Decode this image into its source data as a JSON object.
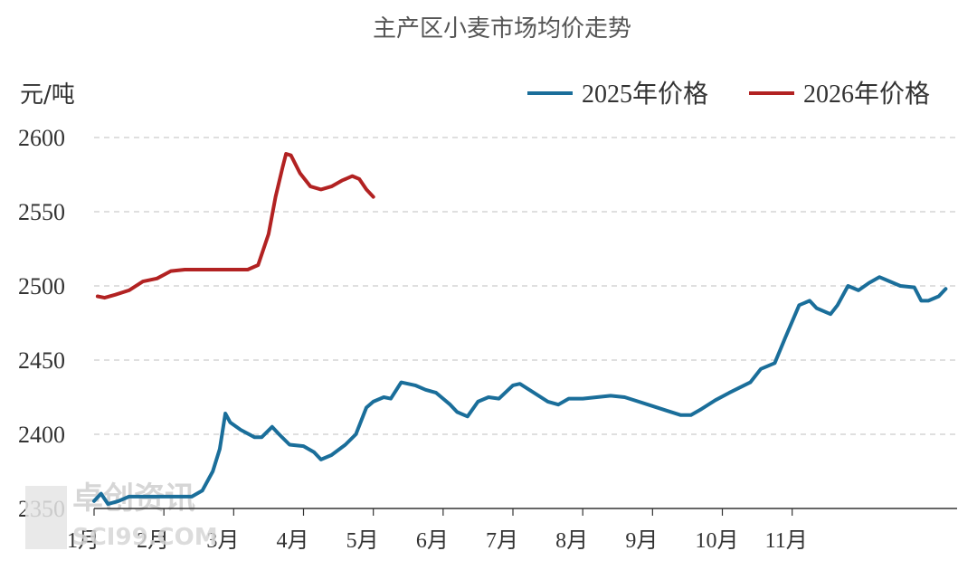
{
  "chart_data": {
    "type": "line",
    "title": "主产区小麦市场均价走势",
    "ylabel": "元/吨",
    "xlabel": "",
    "ylim": [
      2350,
      2600
    ],
    "yticks": [
      2350,
      2400,
      2450,
      2500,
      2550,
      2600
    ],
    "categories": [
      "1月",
      "2月",
      "3月",
      "4月",
      "5月",
      "6月",
      "7月",
      "8月",
      "9月",
      "10月",
      "11月"
    ],
    "x_range_months": [
      1,
      12.93
    ],
    "grid": true,
    "legend_position": "top-right",
    "series": [
      {
        "name": "2025年价格",
        "color": "#1a6e9a",
        "points": [
          [
            1.0,
            2355
          ],
          [
            1.1,
            2360
          ],
          [
            1.2,
            2353
          ],
          [
            1.35,
            2355
          ],
          [
            1.5,
            2358
          ],
          [
            1.8,
            2358
          ],
          [
            2.1,
            2358
          ],
          [
            2.4,
            2358
          ],
          [
            2.55,
            2362
          ],
          [
            2.7,
            2375
          ],
          [
            2.8,
            2390
          ],
          [
            2.88,
            2414
          ],
          [
            2.95,
            2408
          ],
          [
            3.1,
            2403
          ],
          [
            3.3,
            2398
          ],
          [
            3.4,
            2398
          ],
          [
            3.55,
            2405
          ],
          [
            3.65,
            2400
          ],
          [
            3.8,
            2393
          ],
          [
            4.0,
            2392
          ],
          [
            4.15,
            2388
          ],
          [
            4.25,
            2383
          ],
          [
            4.4,
            2386
          ],
          [
            4.6,
            2393
          ],
          [
            4.75,
            2400
          ],
          [
            4.9,
            2418
          ],
          [
            5.0,
            2422
          ],
          [
            5.15,
            2425
          ],
          [
            5.25,
            2424
          ],
          [
            5.4,
            2435
          ],
          [
            5.6,
            2433
          ],
          [
            5.75,
            2430
          ],
          [
            5.9,
            2428
          ],
          [
            6.1,
            2420
          ],
          [
            6.2,
            2415
          ],
          [
            6.35,
            2412
          ],
          [
            6.5,
            2422
          ],
          [
            6.65,
            2425
          ],
          [
            6.8,
            2424
          ],
          [
            7.0,
            2433
          ],
          [
            7.1,
            2434
          ],
          [
            7.3,
            2428
          ],
          [
            7.5,
            2422
          ],
          [
            7.65,
            2420
          ],
          [
            7.8,
            2424
          ],
          [
            8.0,
            2424
          ],
          [
            8.2,
            2425
          ],
          [
            8.4,
            2426
          ],
          [
            8.6,
            2425
          ],
          [
            8.8,
            2422
          ],
          [
            9.0,
            2419
          ],
          [
            9.2,
            2416
          ],
          [
            9.4,
            2413
          ],
          [
            9.55,
            2413
          ],
          [
            9.7,
            2417
          ],
          [
            9.9,
            2423
          ],
          [
            10.1,
            2428
          ],
          [
            10.4,
            2435
          ],
          [
            10.55,
            2444
          ],
          [
            10.75,
            2448
          ],
          [
            10.9,
            2465
          ],
          [
            11.1,
            2487
          ],
          [
            11.25,
            2490
          ],
          [
            11.35,
            2485
          ],
          [
            11.55,
            2481
          ],
          [
            11.65,
            2487
          ],
          [
            11.8,
            2500
          ],
          [
            11.95,
            2497
          ],
          [
            12.1,
            2502
          ],
          [
            12.25,
            2506
          ],
          [
            12.4,
            2503
          ],
          [
            12.55,
            2500
          ],
          [
            12.75,
            2499
          ],
          [
            12.85,
            2490
          ],
          [
            12.95,
            2490
          ],
          [
            13.1,
            2493
          ],
          [
            13.2,
            2498
          ]
        ]
      },
      {
        "name": "2026年价格",
        "color": "#b22222",
        "points": [
          [
            1.05,
            2493
          ],
          [
            1.15,
            2492
          ],
          [
            1.3,
            2494
          ],
          [
            1.5,
            2497
          ],
          [
            1.7,
            2503
          ],
          [
            1.9,
            2505
          ],
          [
            2.1,
            2510
          ],
          [
            2.3,
            2511
          ],
          [
            2.6,
            2511
          ],
          [
            2.9,
            2511
          ],
          [
            3.2,
            2511
          ],
          [
            3.35,
            2514
          ],
          [
            3.5,
            2535
          ],
          [
            3.6,
            2560
          ],
          [
            3.7,
            2580
          ],
          [
            3.75,
            2589
          ],
          [
            3.82,
            2588
          ],
          [
            3.95,
            2576
          ],
          [
            4.1,
            2567
          ],
          [
            4.25,
            2565
          ],
          [
            4.4,
            2567
          ],
          [
            4.55,
            2571
          ],
          [
            4.7,
            2574
          ],
          [
            4.8,
            2572
          ],
          [
            4.9,
            2565
          ],
          [
            5.0,
            2560
          ]
        ]
      }
    ]
  },
  "watermark": {
    "name": "卓创资讯",
    "domain": "SCI99.COM"
  }
}
